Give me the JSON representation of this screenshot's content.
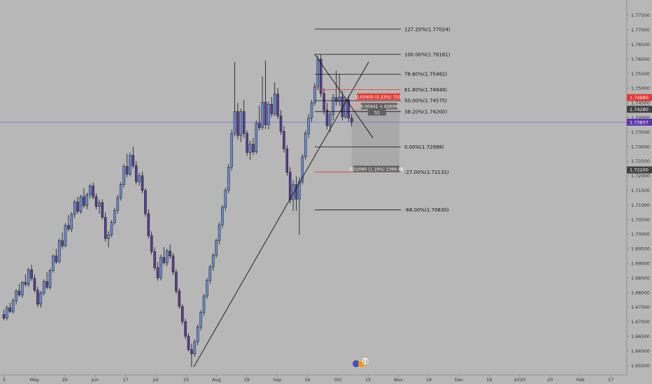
{
  "chart_data": {
    "type": "candlestick",
    "price_axis": {
      "ticks": [
        1.775,
        1.77,
        1.765,
        1.76,
        1.755,
        1.75,
        1.745,
        1.74,
        1.735,
        1.73,
        1.725,
        1.72,
        1.715,
        1.71,
        1.705,
        1.7,
        1.695,
        1.69,
        1.685,
        1.68,
        1.675,
        1.67,
        1.665,
        1.66,
        1.655
      ],
      "tick_labels": [
        "1.77500",
        "1.77000",
        "1.76500",
        "1.76000",
        "1.75500",
        "1.75000",
        "1.74500",
        "1.74000",
        "1.73500",
        "1.73000",
        "1.72500",
        "1.72000",
        "1.71500",
        "1.71000",
        "1.70500",
        "1.70000",
        "1.69500",
        "1.69000",
        "1.68500",
        "1.68000",
        "1.67500",
        "1.67000",
        "1.66500",
        "1.66000",
        "1.65500"
      ],
      "range": [
        1.6532,
        1.7788
      ]
    },
    "time_axis": {
      "labels": [
        "5",
        "May",
        "20",
        "Jun",
        "17",
        "Jul",
        "15",
        "Aug",
        "19",
        "Sep",
        "16",
        "Oct",
        "15",
        "Nov",
        "18",
        "Dec",
        "16",
        "2020",
        "20",
        "Feb",
        "17"
      ]
    },
    "price_tags": [
      {
        "value": "1.74680",
        "price": 1.7468,
        "color": "#e53935"
      },
      {
        "value": "1.74280",
        "price": 1.7428,
        "color": "#424242"
      },
      {
        "value": "1.73837",
        "price": 1.73837,
        "color": "#5e35b1"
      },
      {
        "value": "1.72200",
        "price": 1.722,
        "color": "#424242"
      }
    ],
    "fib_levels": [
      {
        "label": "127.20%(1.77024)",
        "price": 1.77024,
        "color": "#111111"
      },
      {
        "label": "100.00%(1.76161)",
        "price": 1.76161,
        "color": "#111111"
      },
      {
        "label": "78.60%(1.75482)",
        "price": 1.75482,
        "color": "#111111"
      },
      {
        "label": "61.80%(1.74949)",
        "price": 1.74949,
        "color": "#e53935"
      },
      {
        "label": "50.00%(1.74575)",
        "price": 1.74575,
        "color": "#111111"
      },
      {
        "label": "38.20%(1.74200)",
        "price": 1.742,
        "color": "#111111"
      },
      {
        "label": "0.00%(1.72988)",
        "price": 1.72988,
        "color": "#111111"
      },
      {
        "label": "-27.00%(1.72131)",
        "price": 1.72131,
        "color": "#e53935"
      },
      {
        "label": "-68.00%(1.70830)",
        "price": 1.7083,
        "color": "#111111"
      }
    ],
    "current_price": 1.73837,
    "measure_tags": [
      {
        "text": "0.00400 (0.23%) 750",
        "color": "#e53935"
      },
      {
        "text": "0.00441 + 62699",
        "color": "#616161"
      },
      {
        "text": "52",
        "color": "#616161"
      },
      {
        "text": "0.02080 (1.19%) 2399.98",
        "color": "#616161"
      }
    ],
    "badge_count": "22",
    "candles": [
      [
        1.6725,
        1.6742,
        1.6705,
        1.6712
      ],
      [
        1.6712,
        1.6755,
        1.6705,
        1.6748
      ],
      [
        1.6748,
        1.6765,
        1.673,
        1.6735
      ],
      [
        1.6735,
        1.678,
        1.6728,
        1.6772
      ],
      [
        1.6772,
        1.6812,
        1.676,
        1.6805
      ],
      [
        1.6805,
        1.683,
        1.6785,
        1.6792
      ],
      [
        1.6792,
        1.684,
        1.6782,
        1.6835
      ],
      [
        1.6835,
        1.6862,
        1.682,
        1.6828
      ],
      [
        1.6828,
        1.6885,
        1.682,
        1.6878
      ],
      [
        1.6878,
        1.6895,
        1.684,
        1.6848
      ],
      [
        1.6848,
        1.6862,
        1.68,
        1.6808
      ],
      [
        1.6808,
        1.682,
        1.675,
        1.676
      ],
      [
        1.676,
        1.6805,
        1.6748,
        1.6798
      ],
      [
        1.6798,
        1.6845,
        1.679,
        1.6838
      ],
      [
        1.6838,
        1.687,
        1.6812,
        1.6818
      ],
      [
        1.6818,
        1.6882,
        1.681,
        1.6875
      ],
      [
        1.6875,
        1.693,
        1.6868,
        1.6925
      ],
      [
        1.6925,
        1.695,
        1.6898,
        1.6905
      ],
      [
        1.6905,
        1.6985,
        1.69,
        1.6978
      ],
      [
        1.6978,
        1.7005,
        1.695,
        1.696
      ],
      [
        1.696,
        1.7038,
        1.6955,
        1.703
      ],
      [
        1.703,
        1.7065,
        1.701,
        1.7018
      ],
      [
        1.7018,
        1.7075,
        1.7008,
        1.7068
      ],
      [
        1.7068,
        1.7118,
        1.7055,
        1.711
      ],
      [
        1.711,
        1.7128,
        1.707,
        1.7078
      ],
      [
        1.7078,
        1.7135,
        1.707,
        1.7128
      ],
      [
        1.7128,
        1.7158,
        1.709,
        1.7098
      ],
      [
        1.7098,
        1.7142,
        1.7085,
        1.7135
      ],
      [
        1.7135,
        1.7172,
        1.7122,
        1.7165
      ],
      [
        1.7165,
        1.7178,
        1.712,
        1.7128
      ],
      [
        1.7128,
        1.714,
        1.7085,
        1.7095
      ],
      [
        1.7095,
        1.7118,
        1.707,
        1.7108
      ],
      [
        1.7108,
        1.712,
        1.705,
        1.7058
      ],
      [
        1.7058,
        1.7075,
        1.6975,
        1.6985
      ],
      [
        1.6985,
        1.701,
        1.6955,
        1.6998
      ],
      [
        1.6998,
        1.7048,
        1.699,
        1.704
      ],
      [
        1.704,
        1.709,
        1.7032,
        1.7082
      ],
      [
        1.7082,
        1.7135,
        1.707,
        1.7125
      ],
      [
        1.7125,
        1.7178,
        1.7115,
        1.717
      ],
      [
        1.717,
        1.724,
        1.716,
        1.7232
      ],
      [
        1.7232,
        1.7275,
        1.7195,
        1.7205
      ],
      [
        1.7205,
        1.728,
        1.7198,
        1.727
      ],
      [
        1.727,
        1.73,
        1.7225,
        1.7235
      ],
      [
        1.7235,
        1.725,
        1.717,
        1.718
      ],
      [
        1.718,
        1.721,
        1.7165,
        1.72
      ],
      [
        1.72,
        1.7215,
        1.714,
        1.715
      ],
      [
        1.715,
        1.7158,
        1.706,
        1.707
      ],
      [
        1.707,
        1.7085,
        1.6985,
        1.6995
      ],
      [
        1.6995,
        1.701,
        1.693,
        1.694
      ],
      [
        1.694,
        1.6955,
        1.6875,
        1.6885
      ],
      [
        1.6885,
        1.6905,
        1.684,
        1.685
      ],
      [
        1.685,
        1.693,
        1.6842,
        1.692
      ],
      [
        1.692,
        1.6955,
        1.6895,
        1.6902
      ],
      [
        1.6902,
        1.695,
        1.689,
        1.6942
      ],
      [
        1.6942,
        1.6965,
        1.6915,
        1.6925
      ],
      [
        1.6925,
        1.6935,
        1.686,
        1.687
      ],
      [
        1.687,
        1.688,
        1.6795,
        1.6805
      ],
      [
        1.6805,
        1.6815,
        1.6745,
        1.6752
      ],
      [
        1.6752,
        1.676,
        1.669,
        1.67
      ],
      [
        1.67,
        1.671,
        1.664,
        1.665
      ],
      [
        1.665,
        1.666,
        1.6598,
        1.6605
      ],
      [
        1.6605,
        1.6625,
        1.6545,
        1.659
      ],
      [
        1.659,
        1.664,
        1.658,
        1.6632
      ],
      [
        1.6632,
        1.669,
        1.662,
        1.6682
      ],
      [
        1.6682,
        1.674,
        1.667,
        1.6732
      ],
      [
        1.6732,
        1.6795,
        1.672,
        1.6788
      ],
      [
        1.6788,
        1.685,
        1.6778,
        1.6842
      ],
      [
        1.6842,
        1.6895,
        1.683,
        1.6888
      ],
      [
        1.6888,
        1.6935,
        1.6875,
        1.6928
      ],
      [
        1.6928,
        1.6985,
        1.6918,
        1.6978
      ],
      [
        1.6978,
        1.704,
        1.6965,
        1.7032
      ],
      [
        1.7032,
        1.71,
        1.702,
        1.7092
      ],
      [
        1.7092,
        1.716,
        1.708,
        1.715
      ],
      [
        1.715,
        1.724,
        1.714,
        1.723
      ],
      [
        1.723,
        1.7358,
        1.7218,
        1.7345
      ],
      [
        1.7345,
        1.759,
        1.7335,
        1.742
      ],
      [
        1.742,
        1.745,
        1.7325,
        1.7338
      ],
      [
        1.7338,
        1.743,
        1.7315,
        1.742
      ],
      [
        1.742,
        1.746,
        1.733,
        1.7345
      ],
      [
        1.7345,
        1.7355,
        1.7268,
        1.728
      ],
      [
        1.728,
        1.732,
        1.7255,
        1.7308
      ],
      [
        1.7308,
        1.733,
        1.727,
        1.7282
      ],
      [
        1.7282,
        1.739,
        1.7275,
        1.738
      ],
      [
        1.738,
        1.744,
        1.7355,
        1.7365
      ],
      [
        1.7365,
        1.754,
        1.7358,
        1.7452
      ],
      [
        1.7452,
        1.7595,
        1.736,
        1.7375
      ],
      [
        1.7375,
        1.7455,
        1.736,
        1.7445
      ],
      [
        1.7445,
        1.747,
        1.74,
        1.7412
      ],
      [
        1.7412,
        1.752,
        1.7405,
        1.748
      ],
      [
        1.748,
        1.75,
        1.7395,
        1.7405
      ],
      [
        1.7405,
        1.7425,
        1.734,
        1.7352
      ],
      [
        1.7352,
        1.737,
        1.728,
        1.7292
      ],
      [
        1.7292,
        1.7305,
        1.72,
        1.7212
      ],
      [
        1.7212,
        1.723,
        1.7105,
        1.7118
      ],
      [
        1.7118,
        1.7185,
        1.708,
        1.717
      ],
      [
        1.717,
        1.7198,
        1.708,
        1.712
      ],
      [
        1.712,
        1.7195,
        1.6998,
        1.718
      ],
      [
        1.718,
        1.7275,
        1.717,
        1.7265
      ],
      [
        1.7265,
        1.7355,
        1.7255,
        1.7345
      ],
      [
        1.7345,
        1.7412,
        1.733,
        1.7398
      ],
      [
        1.7398,
        1.746,
        1.7385,
        1.745
      ],
      [
        1.745,
        1.7518,
        1.744,
        1.7505
      ],
      [
        1.7505,
        1.761,
        1.7495,
        1.76
      ],
      [
        1.76,
        1.7616,
        1.747,
        1.7482
      ],
      [
        1.7482,
        1.75,
        1.741,
        1.7425
      ],
      [
        1.7425,
        1.745,
        1.736,
        1.7372
      ],
      [
        1.7372,
        1.742,
        1.735,
        1.741
      ],
      [
        1.741,
        1.748,
        1.739,
        1.7468
      ],
      [
        1.7468,
        1.756,
        1.744,
        1.7455
      ],
      [
        1.7455,
        1.755,
        1.744,
        1.747
      ],
      [
        1.747,
        1.749,
        1.739,
        1.7402
      ],
      [
        1.7402,
        1.747,
        1.7395,
        1.746
      ],
      [
        1.746,
        1.7475,
        1.7385,
        1.7398
      ],
      [
        1.7398,
        1.7412,
        1.7368,
        1.7384
      ]
    ]
  }
}
